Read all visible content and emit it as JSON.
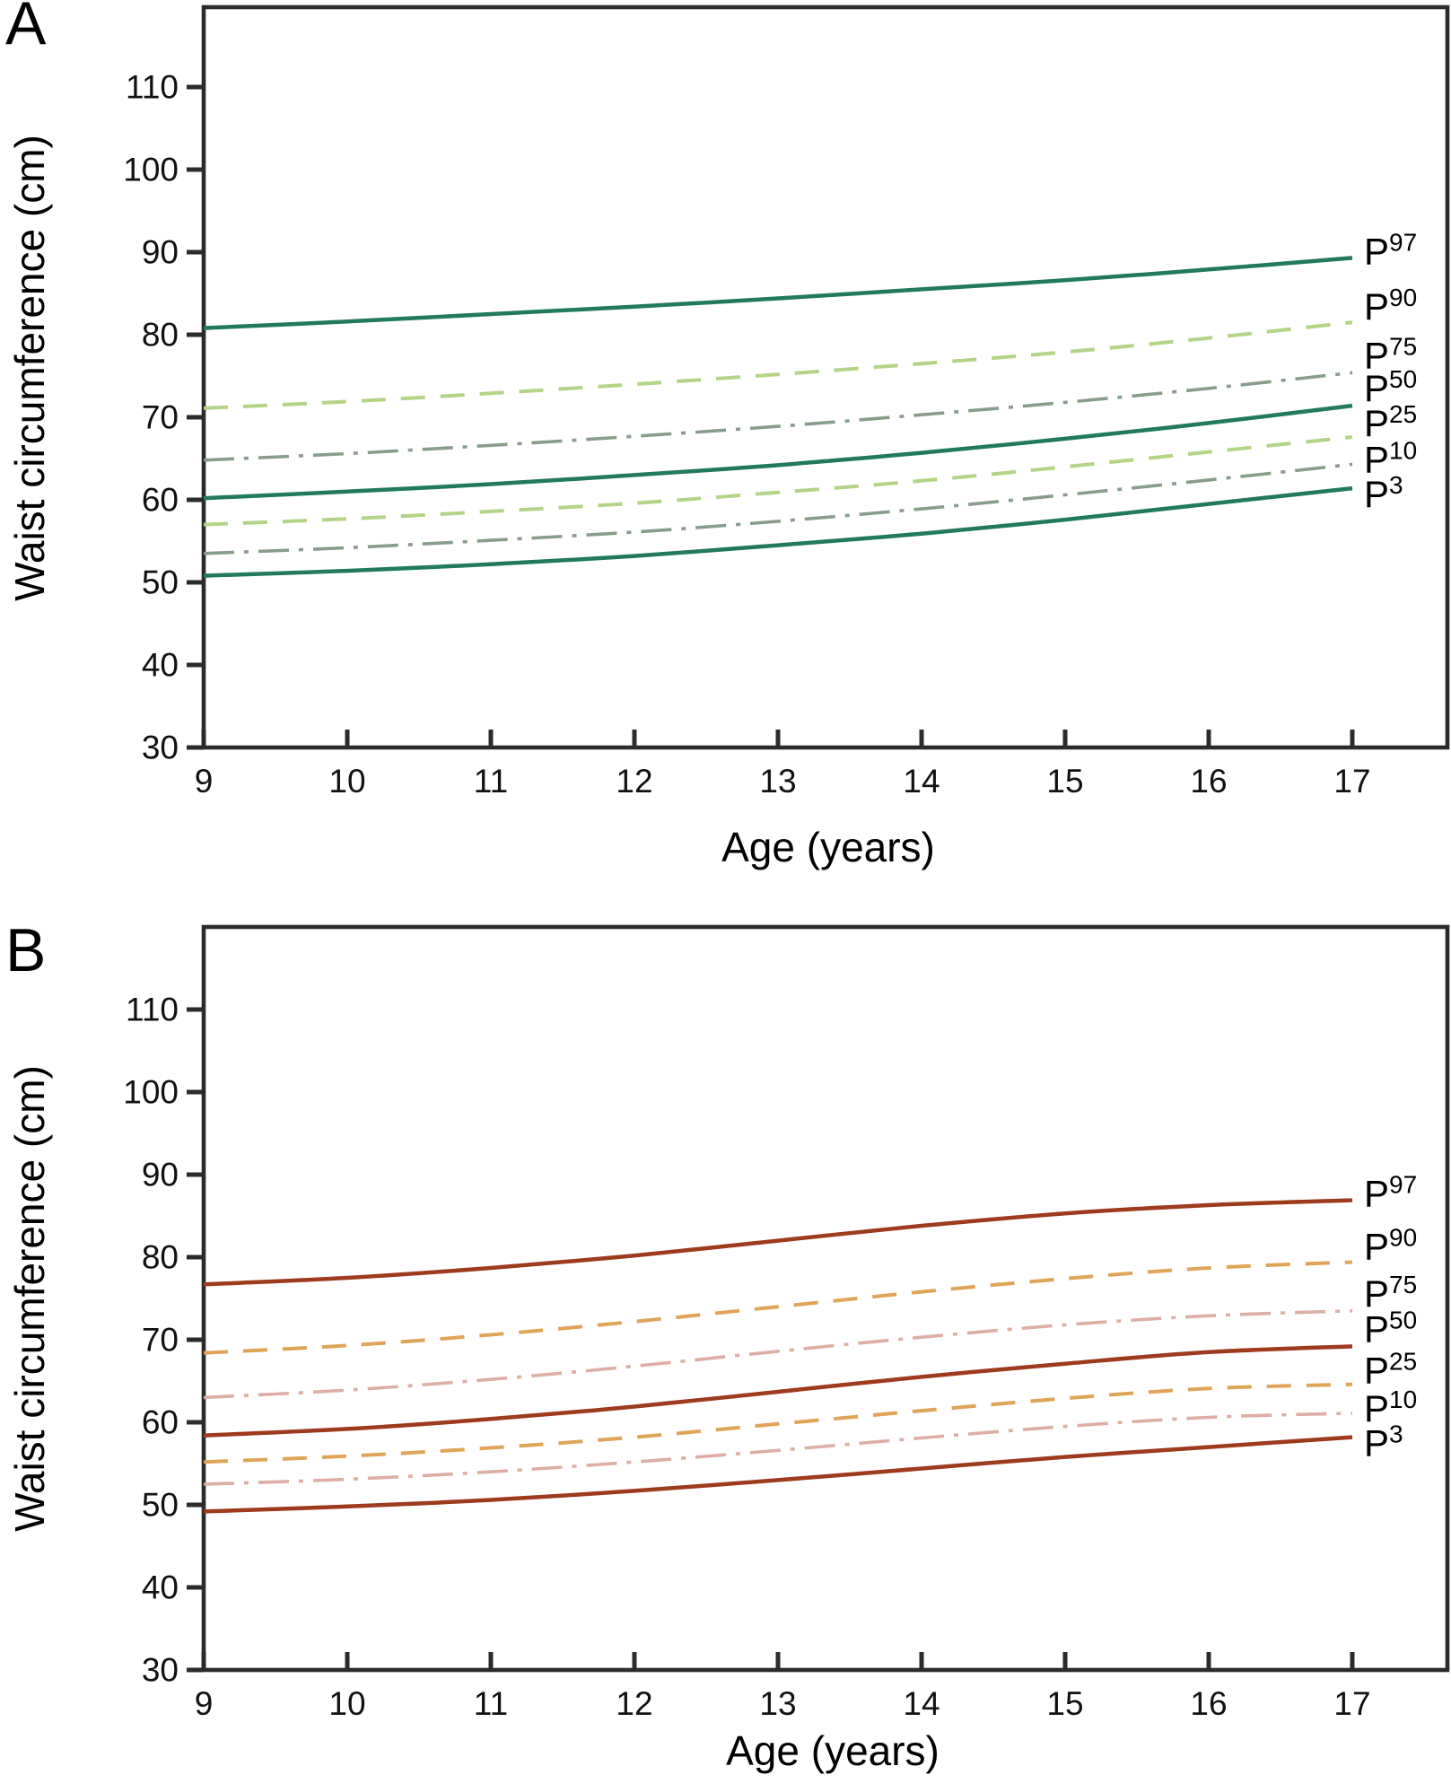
{
  "colors": {
    "background": "#ffffff",
    "axis": "#2b2b2b",
    "text": "#111111",
    "panel_a_solid": "#237a5b",
    "panel_a_dashed": "#b3d486",
    "panel_a_dashdot": "#879d89",
    "panel_b_solid": "#9e3a1d",
    "panel_b_dashed": "#dfa458",
    "panel_b_dashdot": "#dcaea4"
  },
  "chart_data": [
    {
      "type": "line",
      "panel_label": "A",
      "xlabel": "Age (years)",
      "ylabel": "Waist circumference (cm)",
      "x": [
        9,
        10,
        11,
        12,
        13,
        14,
        15,
        16,
        17
      ],
      "x_ticks": [
        9,
        10,
        11,
        12,
        13,
        14,
        15,
        16,
        17
      ],
      "y_ticks": [
        30,
        40,
        50,
        60,
        70,
        80,
        90,
        100,
        110
      ],
      "xlim": [
        9,
        17.66
      ],
      "ylim": [
        30,
        120
      ],
      "grid": false,
      "legend_position": "right-of-line-ends",
      "series": [
        {
          "name": "P97",
          "label_base": "P",
          "label_sup": "97",
          "style": "solid",
          "color": "#237a5b",
          "values": [
            80.8,
            81.6,
            82.5,
            83.4,
            84.4,
            85.5,
            86.6,
            87.9,
            89.3
          ]
        },
        {
          "name": "P90",
          "label_base": "P",
          "label_sup": "90",
          "style": "dashed",
          "color": "#b3d486",
          "values": [
            71.1,
            71.9,
            72.9,
            74.0,
            75.2,
            76.5,
            77.9,
            79.6,
            81.5
          ]
        },
        {
          "name": "P75",
          "label_base": "P",
          "label_sup": "75",
          "style": "dashdot",
          "color": "#879d89",
          "values": [
            64.8,
            65.6,
            66.6,
            67.7,
            68.9,
            70.3,
            71.8,
            73.5,
            75.4
          ]
        },
        {
          "name": "P50",
          "label_base": "P",
          "label_sup": "50",
          "style": "solid",
          "color": "#237a5b",
          "values": [
            60.2,
            61.0,
            61.9,
            63.0,
            64.2,
            65.7,
            67.4,
            69.3,
            71.4
          ]
        },
        {
          "name": "P25",
          "label_base": "P",
          "label_sup": "25",
          "style": "dashed",
          "color": "#b3d486",
          "values": [
            57.0,
            57.7,
            58.6,
            59.6,
            60.9,
            62.3,
            64.0,
            65.8,
            67.6
          ]
        },
        {
          "name": "P10",
          "label_base": "P",
          "label_sup": "10",
          "style": "dashdot",
          "color": "#879d89",
          "values": [
            53.5,
            54.2,
            55.1,
            56.1,
            57.4,
            58.9,
            60.6,
            62.4,
            64.3
          ]
        },
        {
          "name": "P3",
          "label_base": "P",
          "label_sup": "3",
          "style": "solid",
          "color": "#237a5b",
          "values": [
            50.8,
            51.4,
            52.2,
            53.2,
            54.5,
            55.9,
            57.6,
            59.5,
            61.4
          ]
        }
      ]
    },
    {
      "type": "line",
      "panel_label": "B",
      "xlabel": "Age (years)",
      "ylabel": "Waist circumference (cm)",
      "x": [
        9,
        10,
        11,
        12,
        13,
        14,
        15,
        16,
        17
      ],
      "x_ticks": [
        9,
        10,
        11,
        12,
        13,
        14,
        15,
        16,
        17
      ],
      "y_ticks": [
        30,
        40,
        50,
        60,
        70,
        80,
        90,
        100,
        110
      ],
      "xlim": [
        9,
        17.66
      ],
      "ylim": [
        30,
        120
      ],
      "grid": false,
      "legend_position": "right-of-line-ends",
      "series": [
        {
          "name": "P97",
          "label_base": "P",
          "label_sup": "97",
          "style": "solid",
          "color": "#9e3a1d",
          "values": [
            76.7,
            77.5,
            78.7,
            80.2,
            82.0,
            83.8,
            85.3,
            86.3,
            86.9
          ]
        },
        {
          "name": "P90",
          "label_base": "P",
          "label_sup": "90",
          "style": "dashed",
          "color": "#dfa458",
          "values": [
            68.4,
            69.3,
            70.6,
            72.2,
            74.0,
            75.8,
            77.4,
            78.7,
            79.4
          ]
        },
        {
          "name": "P75",
          "label_base": "P",
          "label_sup": "75",
          "style": "dashdot",
          "color": "#dcaea4",
          "values": [
            63.0,
            63.9,
            65.2,
            66.8,
            68.6,
            70.3,
            71.8,
            72.9,
            73.5
          ]
        },
        {
          "name": "P50",
          "label_base": "P",
          "label_sup": "50",
          "style": "solid",
          "color": "#9e3a1d",
          "values": [
            58.4,
            59.2,
            60.4,
            61.9,
            63.7,
            65.5,
            67.1,
            68.5,
            69.2
          ]
        },
        {
          "name": "P25",
          "label_base": "P",
          "label_sup": "25",
          "style": "dashed",
          "color": "#dfa458",
          "values": [
            55.2,
            55.9,
            56.9,
            58.2,
            59.8,
            61.4,
            62.9,
            64.1,
            64.6
          ]
        },
        {
          "name": "P10",
          "label_base": "P",
          "label_sup": "10",
          "style": "dashdot",
          "color": "#dcaea4",
          "values": [
            52.5,
            53.1,
            54.0,
            55.2,
            56.6,
            58.1,
            59.5,
            60.6,
            61.1
          ]
        },
        {
          "name": "P3",
          "label_base": "P",
          "label_sup": "3",
          "style": "solid",
          "color": "#9e3a1d",
          "values": [
            49.2,
            49.8,
            50.6,
            51.7,
            53.0,
            54.4,
            55.8,
            57.0,
            58.2
          ]
        }
      ]
    }
  ]
}
